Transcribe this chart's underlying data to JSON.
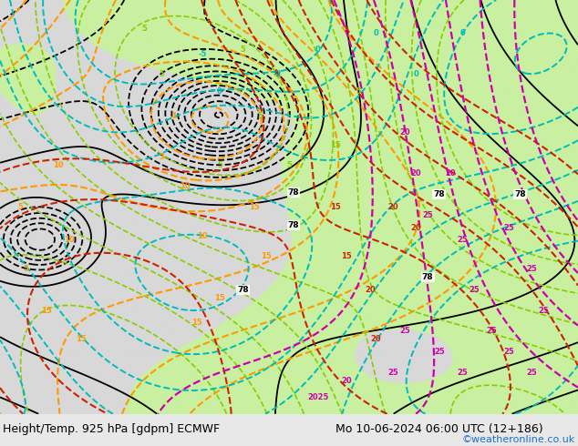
{
  "title_left": "Height/Temp. 925 hPa [gdpm] ECMWF",
  "title_right": "Mo 10-06-2024 06:00 UTC (12+186)",
  "credit": "©weatheronline.co.uk",
  "fig_width": 6.34,
  "fig_height": 4.9,
  "dpi": 100,
  "bg_color": "#e8e8e8",
  "map_bg_color": "#d8d8d8",
  "land_color_light": "#c8f0a0",
  "land_color_dark": "#b0d888",
  "water_color": "#d0d0d0",
  "title_fontsize": 9.0,
  "credit_fontsize": 8.0,
  "credit_color": "#1a6fcc"
}
